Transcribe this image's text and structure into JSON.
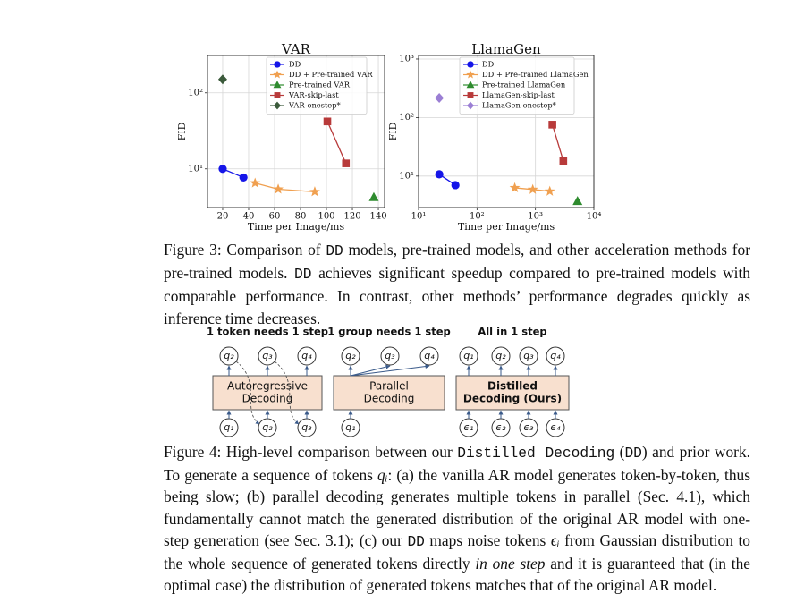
{
  "chart_data": [
    {
      "type": "line",
      "title": "VAR",
      "x_label": "Time per Image/ms",
      "y_label": "FID",
      "xscale": "linear",
      "yscale": "log",
      "grid": true,
      "legend": "upper right",
      "xlim": [
        8.3,
        144.8
      ],
      "ylim": [
        3.1,
        310
      ],
      "xticks": [
        20,
        40,
        60,
        80,
        100,
        120,
        140
      ],
      "yticks": [
        {
          "value": 10,
          "label": "10¹"
        },
        {
          "value": 100,
          "label": "10²"
        }
      ],
      "series": [
        {
          "name": "DD",
          "color": "#1515e8",
          "marker": "circle",
          "x": [
            20,
            36
          ],
          "values": [
            10,
            7.7
          ]
        },
        {
          "name": "DD + Pre-trained VAR",
          "color": "#f0a050",
          "marker": "star",
          "x": [
            45,
            62.8,
            91
          ],
          "values": [
            6.5,
            5.4,
            5.0
          ]
        },
        {
          "name": "Pre-trained VAR",
          "color": "#2e8b2e",
          "marker": "triangle",
          "x": [
            136.5
          ],
          "values": [
            4.2
          ]
        },
        {
          "name": "VAR-skip-last",
          "color": "#b83a3a",
          "marker": "square",
          "x": [
            100.7,
            115
          ],
          "values": [
            42,
            11.8
          ]
        },
        {
          "name": "VAR-onestep*",
          "color": "#3b5a3b",
          "marker": "diamond",
          "x": [
            20
          ],
          "values": [
            150
          ]
        }
      ]
    },
    {
      "type": "line",
      "title": "LlamaGen",
      "x_label": "Time per Image/ms",
      "y_label": "FID",
      "xscale": "log",
      "yscale": "log",
      "grid": true,
      "legend": "upper right",
      "xlim": [
        10,
        10000
      ],
      "ylim": [
        2.9,
        1150
      ],
      "xticks": [
        {
          "value": 10,
          "label": "10¹"
        },
        {
          "value": 100,
          "label": "10²"
        },
        {
          "value": 1000,
          "label": "10³"
        },
        {
          "value": 10000,
          "label": "10⁴"
        }
      ],
      "yticks": [
        {
          "value": 10,
          "label": "10¹"
        },
        {
          "value": 100,
          "label": "10²"
        },
        {
          "value": 1000,
          "label": "10³"
        }
      ],
      "series": [
        {
          "name": "DD",
          "color": "#1515e8",
          "marker": "circle",
          "x": [
            22.6,
            42.7
          ],
          "values": [
            10.7,
            7.0
          ]
        },
        {
          "name": "DD + Pre-trained LlamaGen",
          "color": "#f0a050",
          "marker": "star",
          "x": [
            443,
            900,
            1760
          ],
          "values": [
            6.3,
            5.9,
            5.5
          ]
        },
        {
          "name": "Pre-trained LlamaGen",
          "color": "#2e8b2e",
          "marker": "triangle",
          "x": [
            5250
          ],
          "values": [
            3.7
          ]
        },
        {
          "name": "LlamaGen-skip-last",
          "color": "#b83a3a",
          "marker": "square",
          "x": [
            1950,
            3000
          ],
          "values": [
            75.6,
            18.2
          ]
        },
        {
          "name": "LlamaGen-onestep*",
          "color": "#9b7fd4",
          "marker": "diamond",
          "x": [
            22.6
          ],
          "values": [
            216
          ]
        }
      ]
    }
  ],
  "figure3_caption": [
    "Figure 3: Comparison of ",
    "DD",
    " models, pre-trained models, and other acceleration methods for pre-trained models. ",
    "DD",
    " achieves significant speedup compared to pre-trained models with comparable performance. In contrast, other methods’ performance degrades quickly as inference time decreases."
  ],
  "figure4_diagram": {
    "panels": [
      {
        "header": "1 token needs 1 step",
        "box": [
          "Autoregressive",
          "Decoding"
        ],
        "top": [
          "q₂",
          "q₃",
          "q₄"
        ],
        "bottom": [
          "q₁",
          "q₂",
          "q₃"
        ]
      },
      {
        "header": "1 group needs 1 step",
        "box": [
          "Parallel",
          "Decoding"
        ],
        "top": [
          "q₂",
          "q₃",
          "q₄"
        ],
        "bottom": [
          "q₁"
        ]
      },
      {
        "header": "All in 1 step",
        "box": [
          "Distilled",
          "Decoding (Ours)"
        ],
        "top": [
          "q₁",
          "q₂",
          "q₃",
          "q₄"
        ],
        "bottom": [
          "ϵ₁",
          "ϵ₂",
          "ϵ₃",
          "ϵ₄"
        ]
      }
    ]
  },
  "figure4_caption": [
    "Figure 4: High-level comparison between our ",
    "Distilled Decoding",
    " (",
    "DD",
    ") and prior work. To generate a sequence of tokens ",
    "qᵢ",
    ": (a) the vanilla AR model generates token-by-token, thus being slow; (b) parallel decoding generates multiple tokens in parallel (Sec. 4.1), which fundamentally cannot match the generated distribution of the original AR model with one-step generation (see Sec. 3.1); (c) our ",
    "DD",
    " maps noise tokens ",
    "ϵᵢ",
    " from Gaussian distribution to the whole sequence of generated tokens directly ",
    "in one step",
    " and it is guaranteed that (in the optimal case) the distribution of generated tokens matches that of the original AR model."
  ]
}
